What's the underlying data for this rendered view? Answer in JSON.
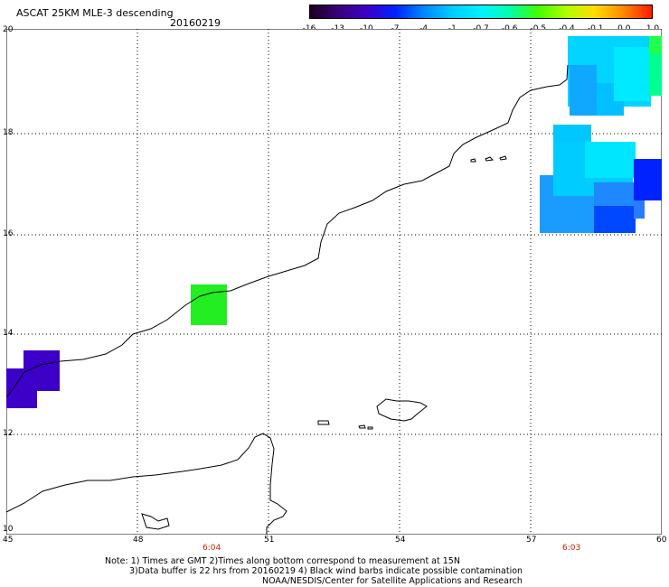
{
  "header": {
    "title": "ASCAT 25KM MLE-3 descending",
    "date": "20160219"
  },
  "colorbar": {
    "labels": [
      "-16",
      "-13",
      "-10",
      "-7",
      "-4",
      "-1",
      "-0.7",
      "-0.6",
      "-0.5",
      "-0.4",
      "-0.1",
      "0.0",
      "1.0"
    ],
    "colors": [
      "#1a0022",
      "#3a007a",
      "#3c00c8",
      "#0022ff",
      "#0088ff",
      "#00ccff",
      "#00f0ff",
      "#00ffb0",
      "#40ff00",
      "#b0ff00",
      "#ffdd00",
      "#ff8800",
      "#ff1a00"
    ]
  },
  "axes": {
    "lat_labels": [
      "20",
      "18",
      "16",
      "14",
      "12",
      "10"
    ],
    "lon_labels": [
      "45",
      "48",
      "51",
      "54",
      "57",
      "60"
    ]
  },
  "times": {
    "left": "6:04",
    "right": "6:03"
  },
  "notes": {
    "line1": "Note: 1) Times are GMT 2)Times along bottom correspond to measurement at 15N",
    "line2": "3)Data buffer is 22 hrs from 20160219 4) Black wind barbs indicate possible contamination",
    "line3": "NOAA/NESDIS/Center for Satellite Applications and Research"
  }
}
